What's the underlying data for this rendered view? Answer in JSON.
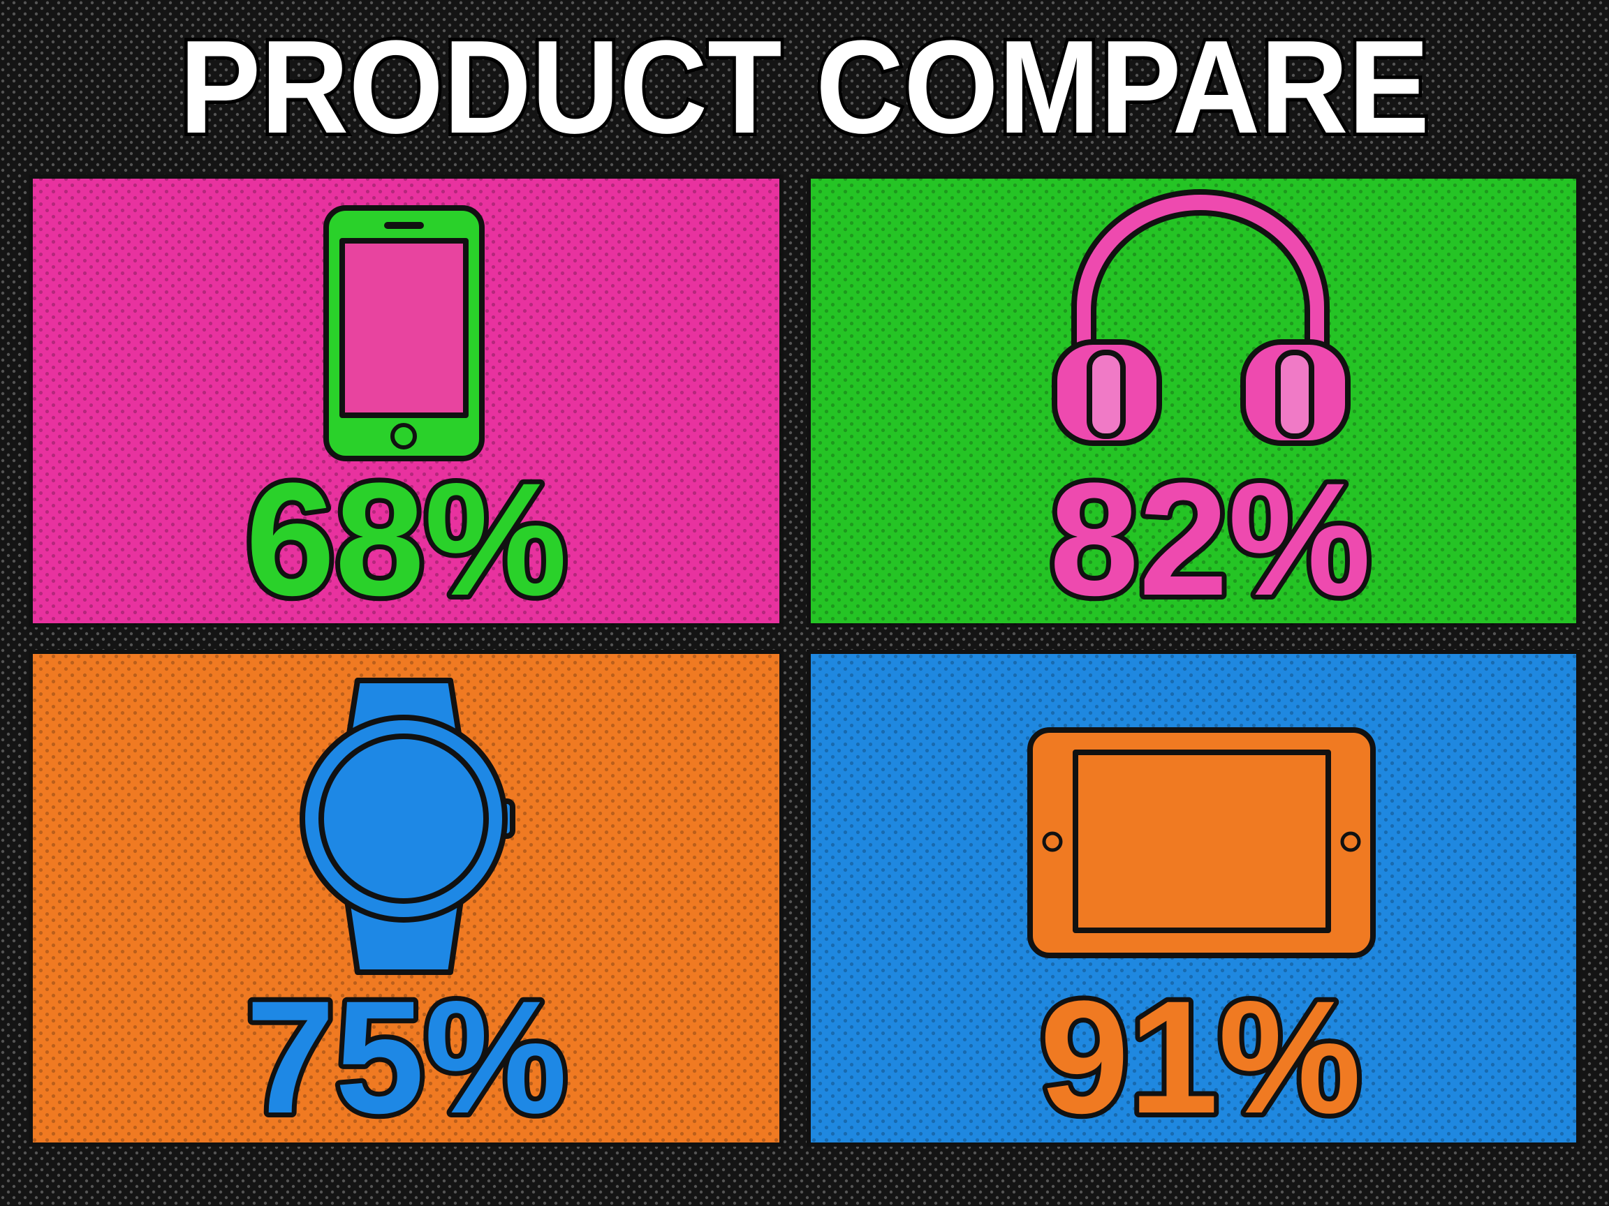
{
  "title": "PRODUCT COMPARE",
  "panels": [
    {
      "icon": "smartphone",
      "value": "68%"
    },
    {
      "icon": "headphones",
      "value": "82%"
    },
    {
      "icon": "smartwatch",
      "value": "75%"
    },
    {
      "icon": "tablet",
      "value": "91%"
    }
  ]
}
